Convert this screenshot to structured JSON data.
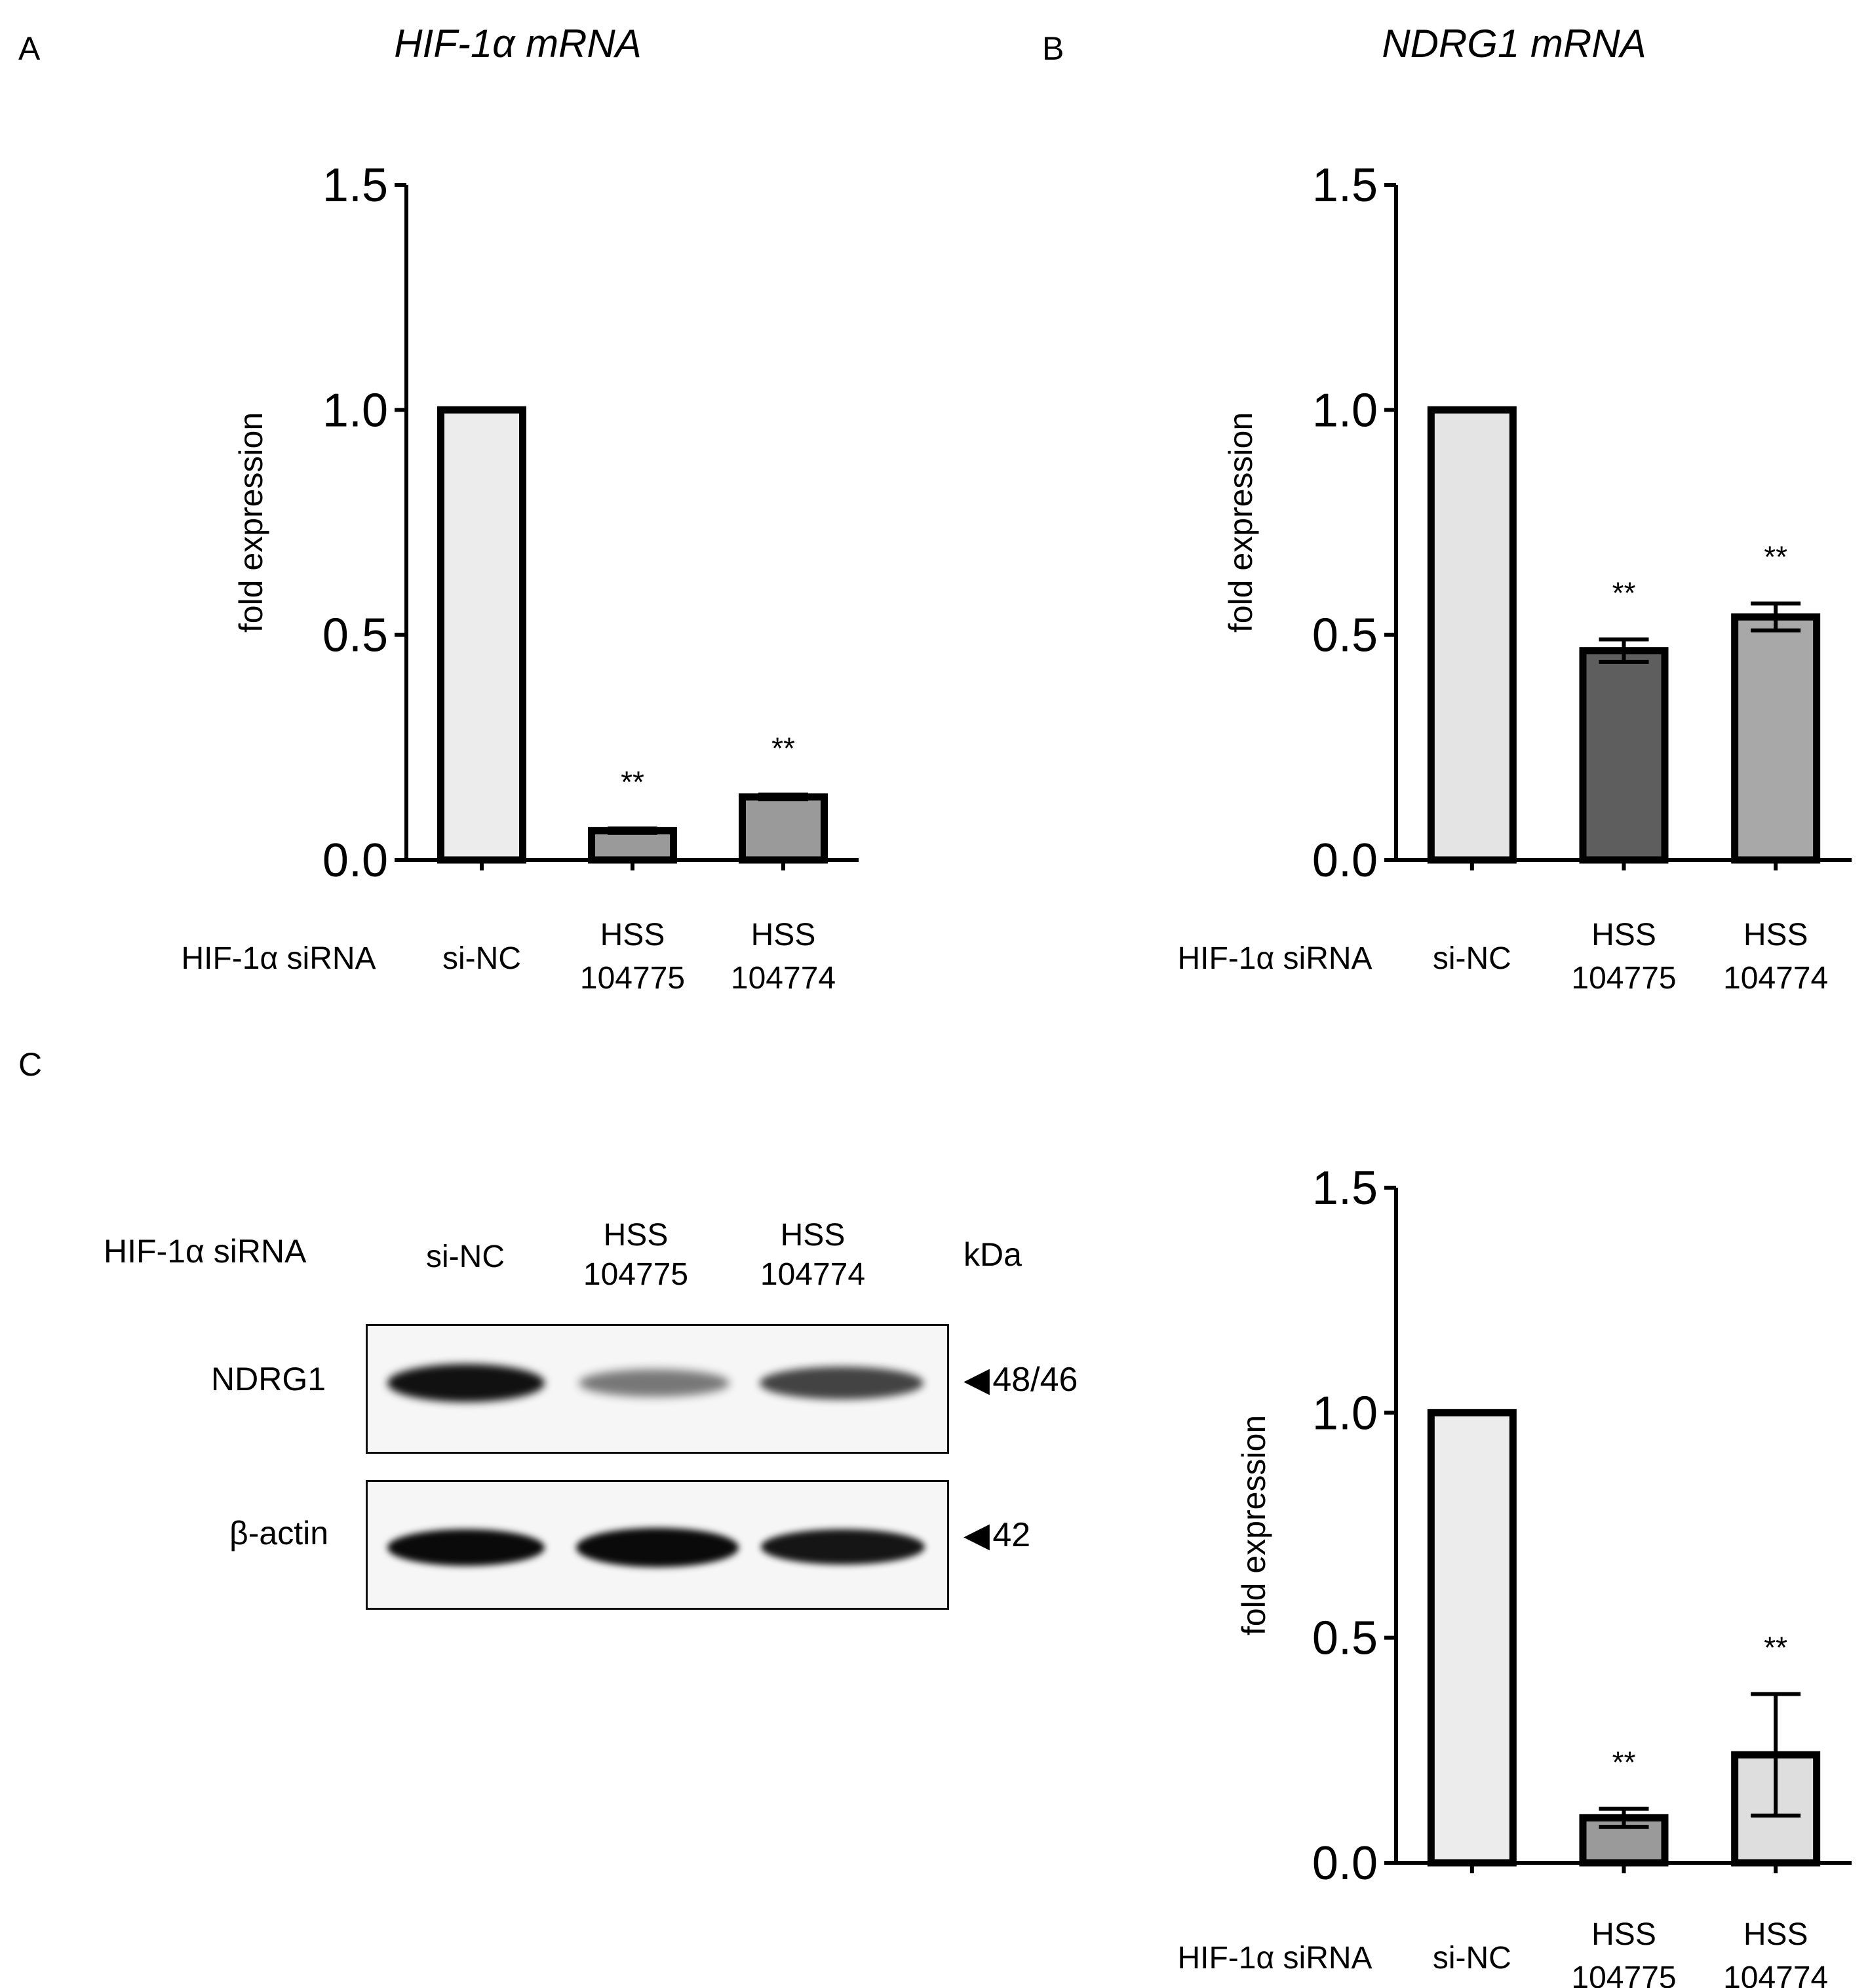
{
  "panels": {
    "a_letter": "A",
    "b_letter": "B",
    "c_letter": "C"
  },
  "titles": {
    "a": "HIF-1α mRNA",
    "b": "NDRG1 mRNA"
  },
  "chart_data": [
    {
      "id": "A",
      "type": "bar",
      "title": "HIF-1α mRNA",
      "ylabel": "fold expression",
      "xlabel": "",
      "row_label": "HIF-1α siRNA",
      "categories": [
        "si-NC",
        "HSS 104775",
        "HSS 104774"
      ],
      "category_lines": [
        [
          "si-NC"
        ],
        [
          "HSS",
          "104775"
        ],
        [
          "HSS",
          "104774"
        ]
      ],
      "values": [
        1.0,
        0.065,
        0.14
      ],
      "errors": [
        0,
        0.005,
        0.005
      ],
      "significance": [
        "",
        "**",
        "**"
      ],
      "bar_colors": [
        "#ececec",
        "#9a9a9a",
        "#9a9a9a"
      ],
      "ylim": [
        0,
        1.5
      ],
      "yticks": [
        "0.0",
        "0.5",
        "1.0",
        "1.5"
      ],
      "grid": false
    },
    {
      "id": "B",
      "type": "bar",
      "title": "NDRG1 mRNA",
      "ylabel": "fold expression",
      "xlabel": "",
      "row_label": "HIF-1α siRNA",
      "categories": [
        "si-NC",
        "HSS 104775",
        "HSS 104774"
      ],
      "category_lines": [
        [
          "si-NC"
        ],
        [
          "HSS",
          "104775"
        ],
        [
          "HSS",
          "104774"
        ]
      ],
      "values": [
        1.0,
        0.465,
        0.54
      ],
      "errors": [
        0,
        0.025,
        0.03
      ],
      "significance": [
        "",
        "**",
        "**"
      ],
      "bar_colors": [
        "#e4e4e4",
        "#5e5e5e",
        "#a8a8a8"
      ],
      "ylim": [
        0,
        1.5
      ],
      "yticks": [
        "0.0",
        "0.5",
        "1.0",
        "1.5"
      ],
      "grid": false
    },
    {
      "id": "C",
      "type": "bar",
      "title": "",
      "ylabel": "fold expression",
      "xlabel": "",
      "row_label": "HIF-1α siRNA",
      "categories": [
        "si-NC",
        "HSS 104775",
        "HSS 104774"
      ],
      "category_lines": [
        [
          "si-NC"
        ],
        [
          "HSS",
          "104775"
        ],
        [
          "HSS",
          "104774"
        ]
      ],
      "values": [
        1.0,
        0.1,
        0.24
      ],
      "errors": [
        0,
        0.02,
        0.135
      ],
      "significance": [
        "",
        "**",
        "**"
      ],
      "bar_colors": [
        "#ececec",
        "#9a9a9a",
        "#dedede"
      ],
      "ylim": [
        0,
        1.5
      ],
      "yticks": [
        "0.0",
        "0.5",
        "1.0",
        "1.5"
      ],
      "grid": false
    }
  ],
  "blot": {
    "row_label": "HIF-1α siRNA",
    "lanes": [
      {
        "line1": "si-NC",
        "line2": ""
      },
      {
        "line1": "HSS",
        "line2": "104775"
      },
      {
        "line1": "HSS",
        "line2": "104774"
      }
    ],
    "unit": "kDa",
    "rows": [
      {
        "protein": "NDRG1",
        "size": "48/46",
        "intensity": [
          1.0,
          0.45,
          0.75
        ]
      },
      {
        "protein": "β-actin",
        "size": "42",
        "intensity": [
          1.0,
          1.0,
          0.95
        ]
      }
    ]
  }
}
